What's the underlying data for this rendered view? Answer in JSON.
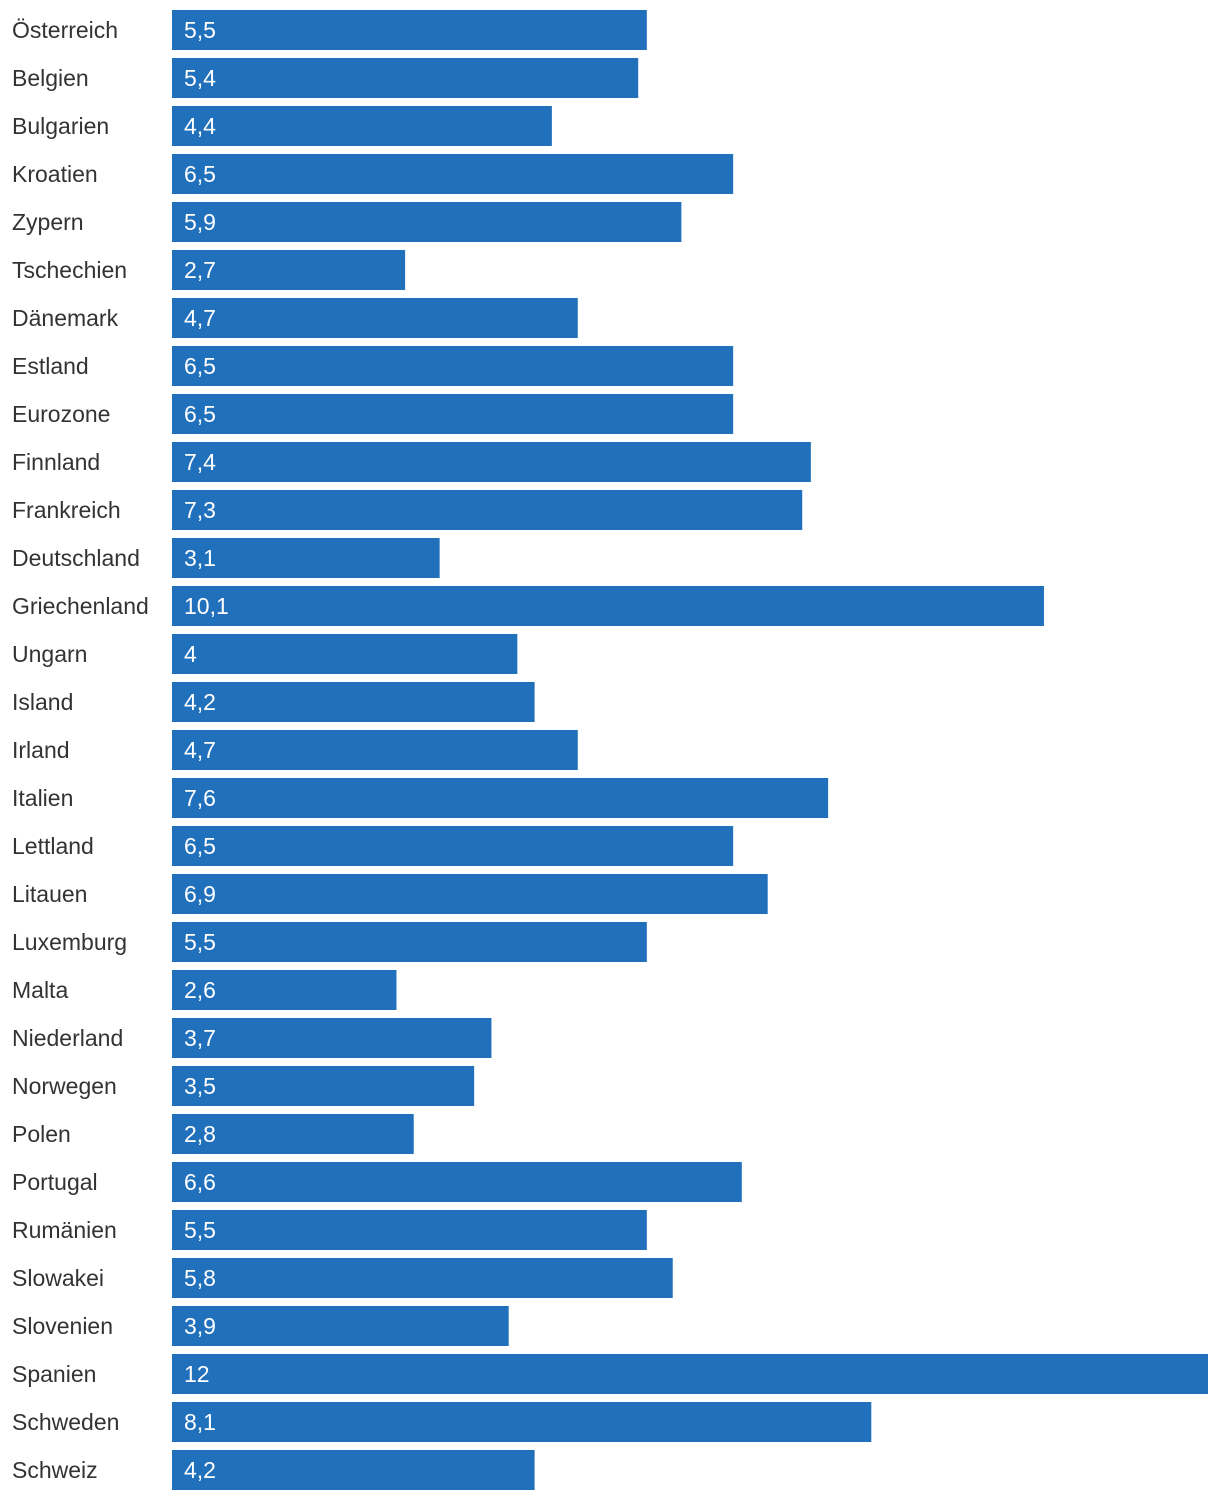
{
  "chart_data": {
    "type": "bar",
    "orientation": "horizontal",
    "categories": [
      "Österreich",
      "Belgien",
      "Bulgarien",
      "Kroatien",
      "Zypern",
      "Tschechien",
      "Dänemark",
      "Estland",
      "Eurozone",
      "Finnland",
      "Frankreich",
      "Deutschland",
      "Griechenland",
      "Ungarn",
      "Island",
      "Irland",
      "Italien",
      "Lettland",
      "Litauen",
      "Luxemburg",
      "Malta",
      "Niederland",
      "Norwegen",
      "Polen",
      "Portugal",
      "Rumänien",
      "Slowakei",
      "Slovenien",
      "Spanien",
      "Schweden",
      "Schweiz"
    ],
    "values": [
      5.5,
      5.4,
      4.4,
      6.5,
      5.9,
      2.7,
      4.7,
      6.5,
      6.5,
      7.4,
      7.3,
      3.1,
      10.1,
      4,
      4.2,
      4.7,
      7.6,
      6.5,
      6.9,
      5.5,
      2.6,
      3.7,
      3.5,
      2.8,
      6.6,
      5.5,
      5.8,
      3.9,
      12,
      8.1,
      4.2
    ],
    "value_labels": [
      "5,5",
      "5,4",
      "4,4",
      "6,5",
      "5,9",
      "2,7",
      "4,7",
      "6,5",
      "6,5",
      "7,4",
      "7,3",
      "3,1",
      "10,1",
      "4",
      "4,2",
      "4,7",
      "7,6",
      "6,5",
      "6,9",
      "5,5",
      "2,6",
      "3,7",
      "3,5",
      "2,8",
      "6,6",
      "5,5",
      "5,8",
      "3,9",
      "12",
      "8,1",
      "4,2"
    ],
    "xlim": [
      0,
      12
    ],
    "grid": false,
    "bar_color": "#2170bc",
    "label_color": "#333333",
    "value_label_color": "#ffffff"
  }
}
